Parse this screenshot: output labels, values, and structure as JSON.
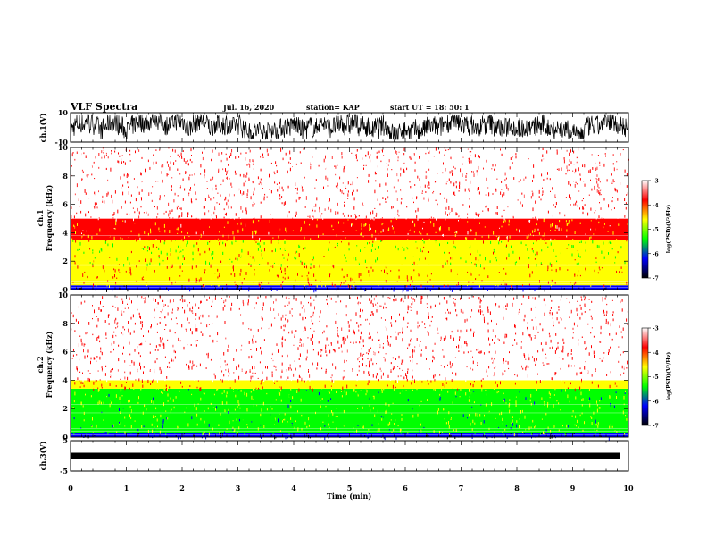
{
  "header": {
    "title": "VLF Spectra",
    "date": "Jul. 16, 2020",
    "station": "station= KAP",
    "start": "start UT =  18: 50: 1"
  },
  "colorbar": {
    "label": "log(PSD)(V²/Hz)",
    "ticks": [
      "-3",
      "-4",
      "-5",
      "-6",
      "-7"
    ],
    "stops": [
      "#ffffff",
      "#ff0000",
      "#ffff00",
      "#00ff00",
      "#0000ff",
      "#000000"
    ]
  },
  "chart_data": [
    {
      "type": "line",
      "ylabel": "ch.1(V)",
      "ylim": [
        -10,
        10
      ],
      "y_ticks": [
        "10",
        "-10"
      ],
      "xlim": [
        0,
        10
      ],
      "description": "dense noisy waveform spanning approximately -8 to 8 V"
    },
    {
      "type": "heatmap",
      "ylabel_line1": "ch.1",
      "ylabel_line2": "Frequency (kHz)",
      "ylim": [
        0,
        10
      ],
      "y_ticks": [
        "0",
        "2",
        "4",
        "6",
        "8",
        "10"
      ],
      "xlim": [
        0,
        10
      ],
      "bands": [
        {
          "from": 0.0,
          "to": 0.3,
          "level": -6.5
        },
        {
          "from": 0.3,
          "to": 1.8,
          "level": -4.3
        },
        {
          "from": 1.8,
          "to": 3.5,
          "level": -4.7
        },
        {
          "from": 3.5,
          "to": 5.0,
          "level": -4.0
        },
        {
          "from": 5.0,
          "to": 10.0,
          "level": -3.4
        }
      ]
    },
    {
      "type": "heatmap",
      "ylabel_line1": "ch.2",
      "ylabel_line2": "Frequency (kHz)",
      "ylim": [
        0,
        10
      ],
      "y_ticks": [
        "0",
        "2",
        "4",
        "6",
        "8",
        "10"
      ],
      "xlim": [
        0,
        10
      ],
      "bands": [
        {
          "from": 0.0,
          "to": 0.3,
          "level": -6.5
        },
        {
          "from": 0.3,
          "to": 3.4,
          "level": -5.2
        },
        {
          "from": 3.4,
          "to": 4.0,
          "level": -4.3
        },
        {
          "from": 4.0,
          "to": 10.0,
          "level": -3.4
        }
      ]
    },
    {
      "type": "line",
      "ylabel": "ch.3(V)",
      "ylim": [
        -5,
        5
      ],
      "y_ticks": [
        "5",
        "-5"
      ],
      "xlim": [
        0,
        10
      ],
      "description": "thick nearly flat trace at about 0 V"
    }
  ],
  "x_axis": {
    "label": "Time (min)",
    "ticks": [
      "0",
      "1",
      "2",
      "3",
      "4",
      "5",
      "6",
      "7",
      "8",
      "9",
      "10"
    ]
  }
}
